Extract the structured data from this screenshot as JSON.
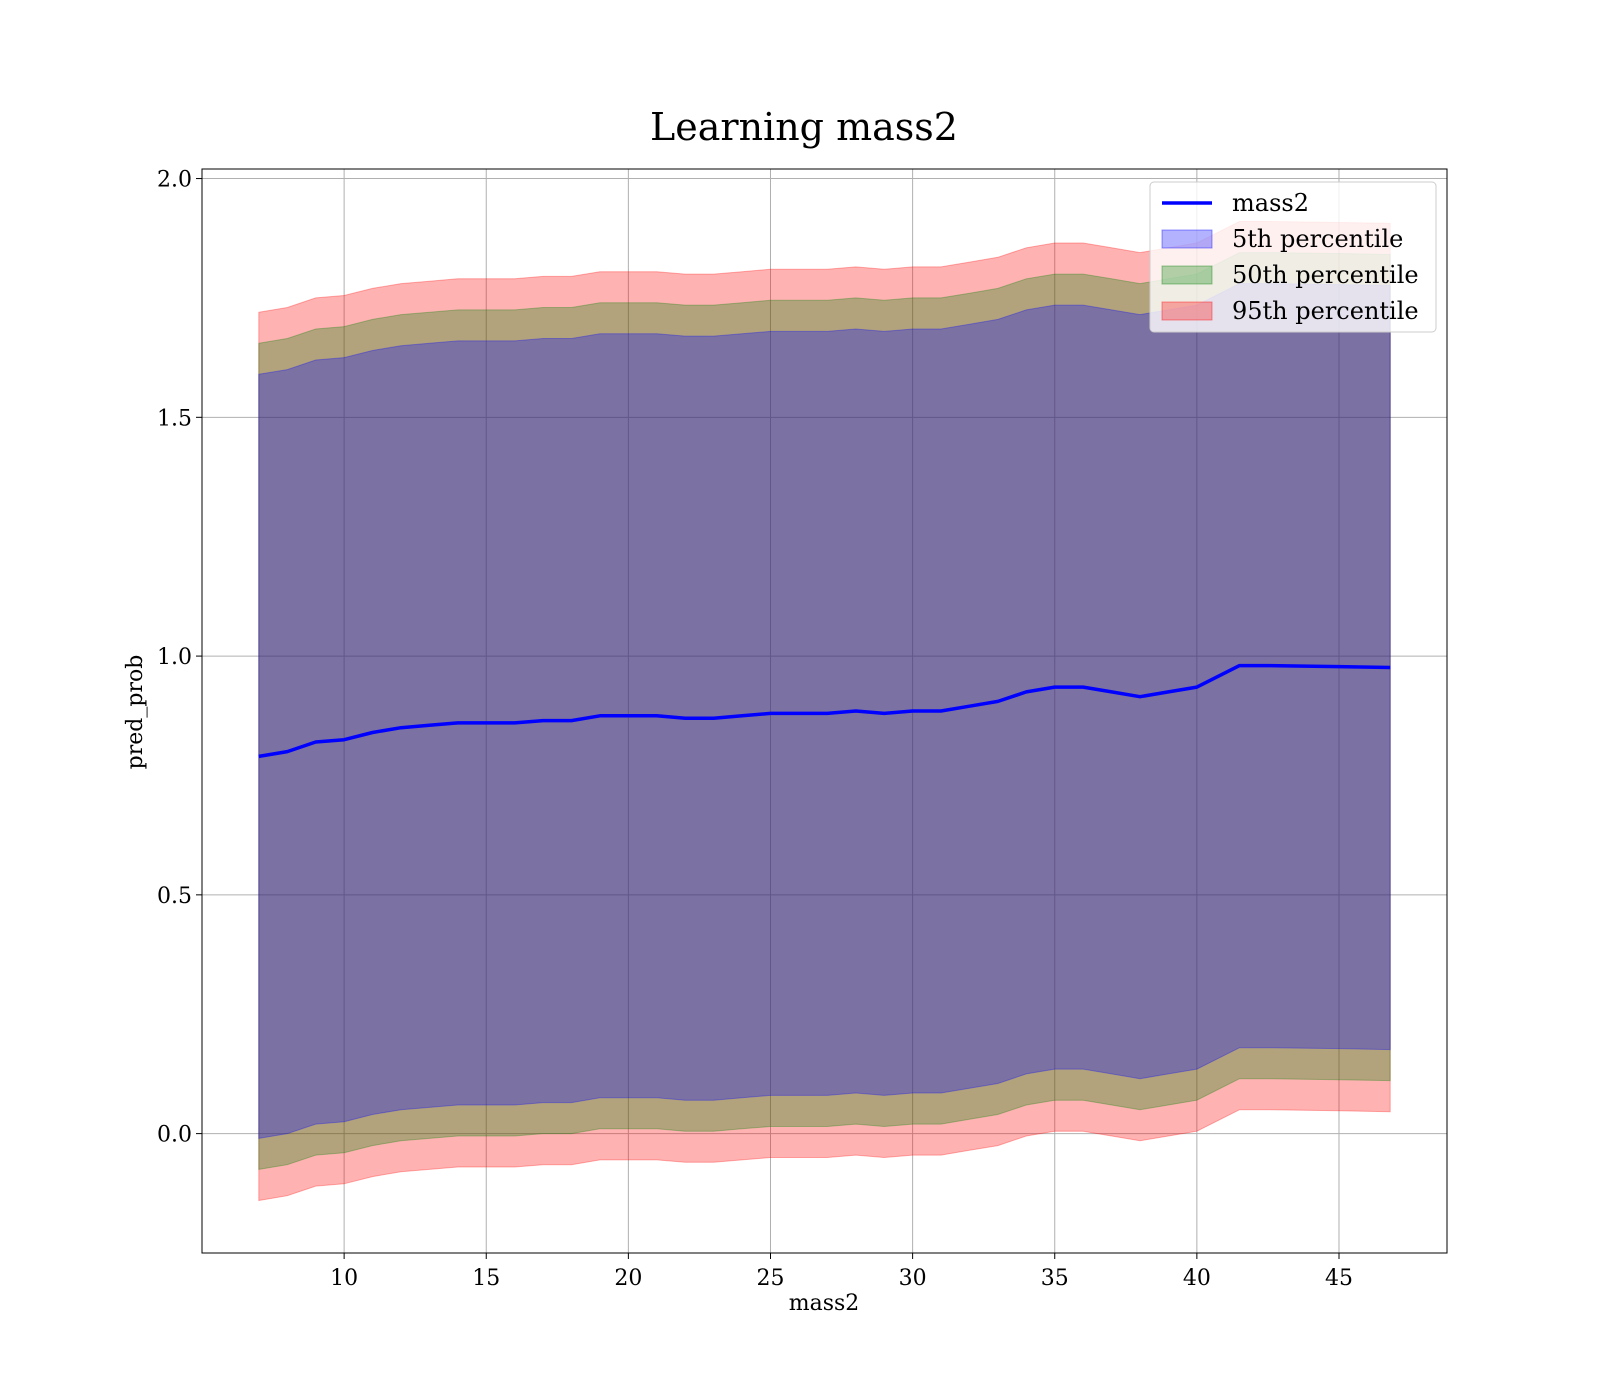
{
  "chart_data": {
    "type": "line",
    "title": "Learning mass2",
    "xlabel": "mass2",
    "ylabel": "pred_prob",
    "xlim": [
      5,
      48.8
    ],
    "ylim": [
      -0.25,
      2.02
    ],
    "xticks": [
      10,
      15,
      20,
      25,
      30,
      35,
      40,
      45
    ],
    "xtick_labels": [
      "10",
      "15",
      "20",
      "25",
      "30",
      "35",
      "40",
      "45"
    ],
    "yticks": [
      0.0,
      0.5,
      1.0,
      1.5,
      2.0
    ],
    "ytick_labels": [
      "0.0",
      "0.5",
      "1.0",
      "1.5",
      "2.0"
    ],
    "grid": true,
    "legend_position": "top-right",
    "x": [
      7,
      8,
      9,
      10,
      11,
      12,
      13,
      14,
      15,
      16,
      17,
      18,
      19,
      20,
      21,
      22,
      23,
      24,
      25,
      26,
      27,
      28,
      29,
      30,
      31,
      32,
      33,
      34,
      35,
      36,
      37,
      38,
      39,
      40,
      41.5,
      42.5,
      45,
      46.8
    ],
    "line": {
      "name": "mass2",
      "color": "#0000ff",
      "values": [
        0.79,
        0.8,
        0.82,
        0.825,
        0.84,
        0.85,
        0.855,
        0.86,
        0.86,
        0.86,
        0.865,
        0.865,
        0.875,
        0.875,
        0.875,
        0.87,
        0.87,
        0.875,
        0.88,
        0.88,
        0.88,
        0.885,
        0.88,
        0.885,
        0.885,
        0.895,
        0.905,
        0.925,
        0.935,
        0.935,
        0.925,
        0.915,
        0.925,
        0.935,
        0.98,
        0.98,
        0.978,
        0.976
      ]
    },
    "bands": [
      {
        "name": "95th percentile",
        "color": "#ff0000",
        "opacity": 0.3,
        "offset": 0.93
      },
      {
        "name": "50th percentile",
        "color": "#008000",
        "opacity": 0.3,
        "offset": 0.865
      },
      {
        "name": "5th percentile",
        "color": "#0000ff",
        "opacity": 0.3,
        "offset": 0.8
      }
    ],
    "legend": [
      {
        "label": "mass2",
        "kind": "line",
        "color": "#0000ff"
      },
      {
        "label": "5th percentile",
        "kind": "patch",
        "color": "#0000ff"
      },
      {
        "label": "50th percentile",
        "kind": "patch",
        "color": "#008000"
      },
      {
        "label": "95th percentile",
        "kind": "patch",
        "color": "#ff0000"
      }
    ]
  }
}
